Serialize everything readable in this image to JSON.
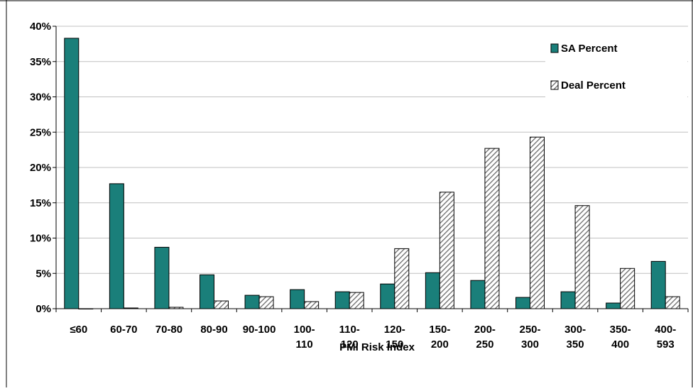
{
  "chart_data": {
    "type": "bar",
    "title": "",
    "xlabel": "PMI Risk Index",
    "ylabel": "",
    "ylim": [
      0,
      40
    ],
    "yticks": [
      "0%",
      "5%",
      "10%",
      "15%",
      "20%",
      "25%",
      "30%",
      "35%",
      "40%"
    ],
    "grid": true,
    "legend_position": "top-right",
    "categories": [
      [
        "≤60"
      ],
      [
        "60-70"
      ],
      [
        "70-80"
      ],
      [
        "80-90"
      ],
      [
        "90-100"
      ],
      [
        "100-",
        "110"
      ],
      [
        "110-",
        "120"
      ],
      [
        "120-",
        "150"
      ],
      [
        "150-",
        "200"
      ],
      [
        "200-",
        "250"
      ],
      [
        "250-",
        "300"
      ],
      [
        "300-",
        "350"
      ],
      [
        "350-",
        "400"
      ],
      [
        "400-",
        "593"
      ]
    ],
    "series": [
      {
        "name": "SA Percent",
        "color": "#1a7f7a",
        "pattern": "solid",
        "values": [
          38.3,
          17.7,
          8.7,
          4.8,
          1.9,
          2.7,
          2.4,
          3.5,
          5.1,
          4.0,
          1.6,
          2.4,
          0.8,
          6.7
        ]
      },
      {
        "name": "Deal Percent",
        "color": "#808080",
        "pattern": "diagonal-hatch",
        "values": [
          0.0,
          0.1,
          0.2,
          1.1,
          1.7,
          1.0,
          2.3,
          8.5,
          16.5,
          22.7,
          24.3,
          14.6,
          5.7,
          1.7
        ]
      }
    ]
  }
}
